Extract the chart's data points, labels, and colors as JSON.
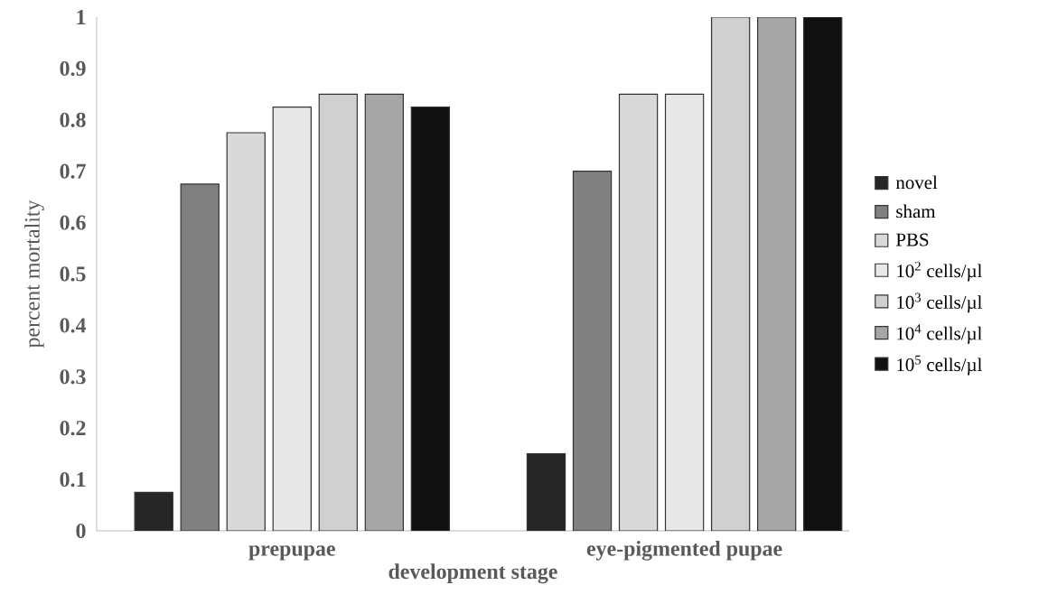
{
  "chart_data": {
    "type": "bar",
    "xlabel": "development stage",
    "ylabel": "percent mortality",
    "categories": [
      "prepupae",
      "eye-pigmented pupae"
    ],
    "series": [
      {
        "name": "novel",
        "color": "#262626",
        "values": [
          0.075,
          0.15
        ]
      },
      {
        "name": "sham",
        "color": "#808080",
        "values": [
          0.675,
          0.7
        ]
      },
      {
        "name": "PBS",
        "color": "#d9d9d9",
        "values": [
          0.775,
          0.85
        ]
      },
      {
        "name": "10$^{2}$ cells/µl",
        "color": "#e8e8e8",
        "values": [
          0.825,
          0.85
        ]
      },
      {
        "name": "10$^{3}$ cells/µl",
        "color": "#d0d0d0",
        "values": [
          0.85,
          1
        ]
      },
      {
        "name": "10$^{4}$ cells/µl",
        "color": "#a6a6a6",
        "values": [
          0.85,
          1
        ]
      },
      {
        "name": "10$^{5}$ cells/µl",
        "color": "#111111",
        "values": [
          0.825,
          1
        ]
      }
    ],
    "ylim": [
      0,
      1
    ],
    "yticks": [
      0,
      0.1,
      0.2,
      0.3,
      0.4,
      0.5,
      0.6,
      0.7,
      0.8,
      0.9,
      1
    ],
    "grid": false,
    "legend": "right"
  }
}
